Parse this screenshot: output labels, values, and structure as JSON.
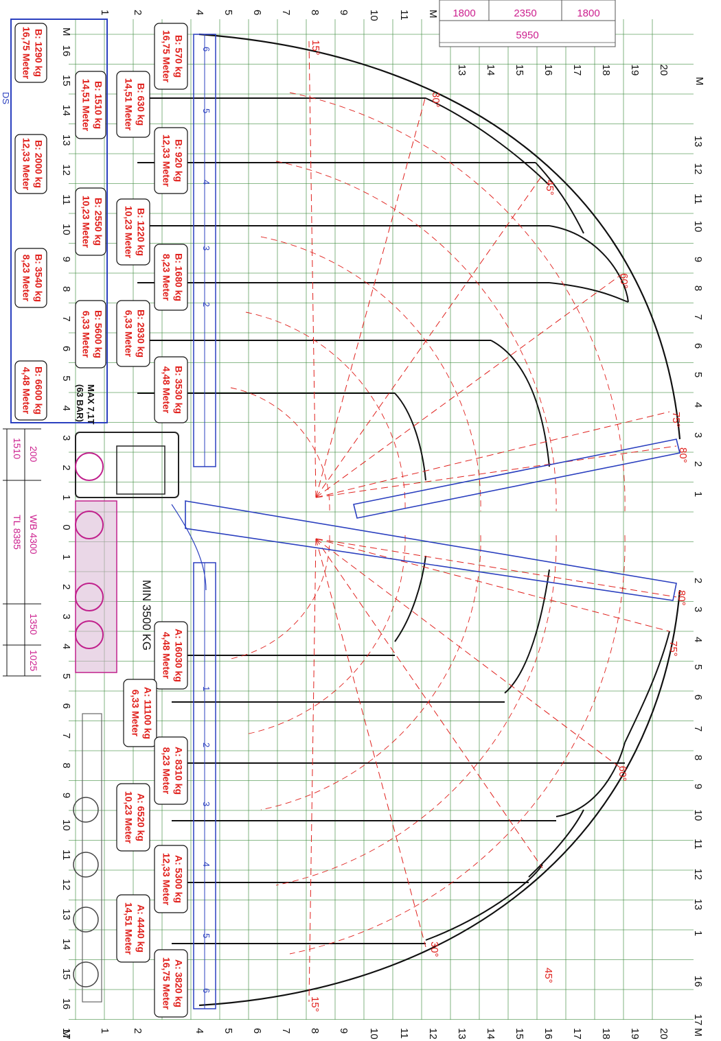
{
  "axis": {
    "unit": "M",
    "left_ticks": [
      "1",
      "2",
      "4",
      "5",
      "6",
      "7",
      "8",
      "9",
      "10",
      "11"
    ],
    "bottom_ticks": [
      "1",
      "2",
      "4",
      "5",
      "6",
      "7",
      "8",
      "9",
      "10",
      "11",
      "12",
      "13",
      "14",
      "15",
      "16",
      "17",
      "18",
      "19",
      "20"
    ],
    "right_ticks_top": [
      "13",
      "14",
      "15",
      "16",
      "17",
      "18",
      "19",
      "20"
    ],
    "vertical_ticks": [
      "16",
      "15",
      "14",
      "13",
      "12",
      "11",
      "10",
      "9",
      "8",
      "7",
      "6",
      "5",
      "4",
      "3",
      "2",
      "1",
      "0",
      "1",
      "2",
      "3",
      "4",
      "5",
      "6",
      "7",
      "8",
      "9",
      "10",
      "11",
      "12",
      "13",
      "14",
      "15",
      "16",
      "17"
    ],
    "right_side_ticks": [
      "13",
      "12",
      "11",
      "10",
      "9",
      "8",
      "7",
      "6",
      "5",
      "4",
      "3",
      "2",
      "1",
      "2",
      "3",
      "4",
      "5",
      "6",
      "7",
      "8",
      "9",
      "10",
      "11",
      "12",
      "13",
      "1",
      "16",
      "17"
    ]
  },
  "dimensions_top": {
    "segments": [
      "1800",
      "2350",
      "1800"
    ],
    "total": "5950"
  },
  "angles": {
    "upper": [
      "15°",
      "30°",
      "45°",
      "60°",
      "75°",
      "80°"
    ],
    "lower": [
      "80°",
      "75°",
      "60°",
      "45°",
      "30°",
      "15°"
    ]
  },
  "side_b_labels": [
    {
      "length": "16,75 Meter",
      "load": "B: 570 kg"
    },
    {
      "length": "14,51 Meter",
      "load": "B: 630 kg"
    },
    {
      "length": "12,33 Meter",
      "load": "B: 920 kg"
    },
    {
      "length": "10,23 Meter",
      "load": "B: 1220 kg"
    },
    {
      "length": "8,23 Meter",
      "load": "B: 1680 kg"
    },
    {
      "length": "6,33 Meter",
      "load": "B: 2930 kg"
    },
    {
      "length": "4,48 Meter",
      "load": "B: 3530 kg"
    }
  ],
  "box_labels_inner": [
    {
      "length": "14,51 Meter",
      "load": "B: 1510 kg"
    },
    {
      "length": "10,23 Meter",
      "load": "B: 2550 kg"
    },
    {
      "length": "6,33 Meter",
      "load": "B: 5600 kg"
    }
  ],
  "box_labels_outer": [
    {
      "length": "16,75 Meter",
      "load": "B: 1290 kg"
    },
    {
      "length": "12,33 Meter",
      "load": "B: 2000 kg"
    },
    {
      "length": "8,23 Meter",
      "load": "B: 3540 kg"
    },
    {
      "length": "4,48 Meter",
      "load": "B: 6600 kg"
    }
  ],
  "box_note": {
    "line1": "MAX 7,1T",
    "line2": "(63 BAR)"
  },
  "side_a_labels": [
    {
      "length": "4,48 Meter",
      "load": "A: 16030 kg"
    },
    {
      "length": "6,33 Meter",
      "load": "A: 11100 kg"
    },
    {
      "length": "8,23 Meter",
      "load": "A: 8310 kg"
    },
    {
      "length": "10,23 Meter",
      "load": "A: 6520 kg"
    },
    {
      "length": "12,33 Meter",
      "load": "A: 5300 kg"
    },
    {
      "length": "14,51 Meter",
      "load": "A: 4440 kg"
    },
    {
      "length": "16,75 Meter",
      "load": "A: 3820 kg"
    }
  ],
  "min_note": "MIN 3500 KG",
  "truck_dims": {
    "d1": "1510",
    "d2": "200",
    "wb": "WB 4300",
    "tl": "TL 8385",
    "d3": "1350",
    "d4": "1025"
  },
  "boom_sections_upper": [
    "6",
    "5",
    "4",
    "3",
    "2"
  ],
  "boom_sections_lower": [
    "1",
    "2",
    "3",
    "4",
    "5",
    "6"
  ],
  "corner_mark": "DS",
  "colors": {
    "grid": "#3c8a3c",
    "red": "#e0201c",
    "blue": "#2a3fbf",
    "magenta": "#c0208c",
    "black": "#111111",
    "pink": "#cc1f8e"
  }
}
